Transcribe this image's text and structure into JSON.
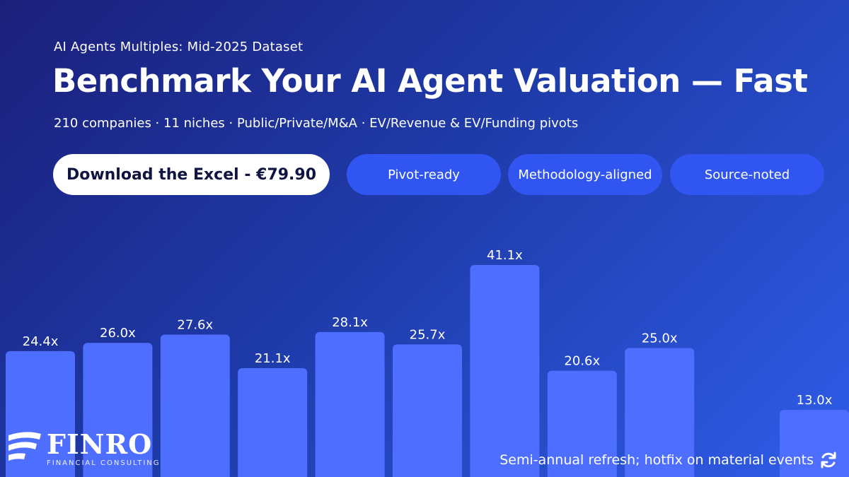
{
  "header": {
    "eyebrow": "AI Agents Multiples: Mid-2025 Dataset",
    "title": "Benchmark Your AI Agent Valuation — Fast",
    "subtitle": "210 companies · 11 niches · Public/Private/M&A · EV/Revenue & EV/Funding pivots"
  },
  "cta": {
    "label": "Download the Excel - €79.90"
  },
  "pills": [
    "Pivot-ready",
    "Methodology-aligned",
    "Source-noted"
  ],
  "colors": {
    "bar": "#4d6eff",
    "pill": "#3155f0",
    "cta_bg": "#ffffff",
    "cta_text": "#0f1540"
  },
  "chart_data": {
    "type": "bar",
    "values": [
      24.4,
      26.0,
      27.6,
      21.1,
      28.1,
      25.7,
      41.1,
      20.6,
      25.0,
      null,
      13.0
    ],
    "data_labels": [
      "24.4x",
      "26.0x",
      "27.6x",
      "21.1x",
      "28.1x",
      "25.7x",
      "41.1x",
      "20.6x",
      "25.0x",
      "",
      "13.0x"
    ],
    "grid": false,
    "legend": "none"
  },
  "brand": {
    "name": "FINRO",
    "tagline": "FINANCIAL CONSULTING"
  },
  "footer": {
    "note": "Semi-annual refresh; hotfix on material events",
    "icon": "refresh-icon"
  }
}
